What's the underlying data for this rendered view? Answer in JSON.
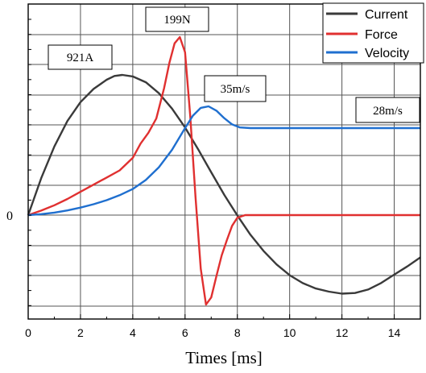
{
  "chart_data": {
    "type": "line",
    "xlabel": "Times [ms]",
    "xlim": [
      0,
      15
    ],
    "x_ticks": [
      "0",
      "2",
      "4",
      "6",
      "8",
      "10",
      "12",
      "14"
    ],
    "y_zero_label": "0",
    "grid": true,
    "legend_position": "top-right",
    "series": [
      {
        "name": "Current",
        "color": "#3a3a3a",
        "x": [
          0,
          0.5,
          1,
          1.5,
          2,
          2.5,
          3,
          3.3,
          3.6,
          4,
          4.5,
          5,
          5.5,
          6,
          6.5,
          7,
          7.5,
          8,
          8.5,
          9,
          9.5,
          10,
          10.5,
          11,
          11.5,
          12,
          12.5,
          13,
          13.5,
          14,
          14.5,
          15
        ],
        "y": [
          0,
          243,
          451,
          618,
          742,
          829,
          889,
          914,
          921,
          911,
          873,
          801,
          700,
          576,
          433,
          281,
          133,
          -2,
          -129,
          -235,
          -324,
          -395,
          -447,
          -482,
          -503,
          -516,
          -512,
          -489,
          -446,
          -391,
          -337,
          -278
        ]
      },
      {
        "name": "Force",
        "color": "#e03030",
        "x": [
          0,
          0.5,
          1,
          1.5,
          2,
          2.5,
          3,
          3.5,
          4,
          4.3,
          4.6,
          4.9,
          5.2,
          5.4,
          5.6,
          5.8,
          6.0,
          6.2,
          6.4,
          6.6,
          6.8,
          7.0,
          7.2,
          7.4,
          7.6,
          7.8,
          8.0,
          8.3,
          8.6,
          9,
          10,
          11,
          12,
          13,
          14,
          15
        ],
        "y": [
          0,
          5,
          11,
          18,
          26,
          34,
          42,
          50,
          64,
          80,
          92,
          108,
          142,
          170,
          192,
          199,
          182,
          110,
          20,
          -60,
          -100,
          -92,
          -68,
          -45,
          -28,
          -12,
          -3,
          0,
          0,
          0,
          0,
          0,
          0,
          0,
          0,
          0
        ]
      },
      {
        "name": "Velocity",
        "color": "#1f6fcf",
        "x": [
          0,
          0.5,
          1,
          1.5,
          2,
          2.5,
          3,
          3.5,
          4,
          4.5,
          5,
          5.5,
          6,
          6.3,
          6.6,
          6.9,
          7.2,
          7.5,
          7.8,
          8.1,
          8.5,
          9,
          10,
          11,
          12,
          13,
          14,
          15
        ],
        "y": [
          0,
          0.3,
          0.8,
          1.5,
          2.4,
          3.5,
          4.8,
          6.4,
          8.4,
          11.3,
          15.4,
          21.0,
          28.0,
          32.0,
          34.5,
          35.0,
          33.6,
          31.2,
          29.2,
          28.2,
          28.0,
          28.0,
          28.0,
          28.0,
          28.0,
          28.0,
          28.0,
          28.0
        ]
      }
    ],
    "annotations": [
      {
        "text": "921A"
      },
      {
        "text": "199N"
      },
      {
        "text": "35m/s"
      },
      {
        "text": "28m/s"
      }
    ]
  }
}
